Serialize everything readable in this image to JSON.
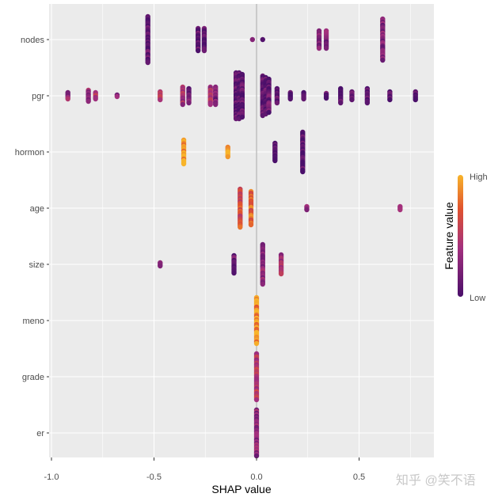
{
  "chart_data": {
    "type": "scatter",
    "xlabel": "SHAP value",
    "ylabel": "",
    "xlim": [
      -1.02,
      0.86
    ],
    "x_ticks": [
      -1.0,
      -0.5,
      0.0,
      0.5
    ],
    "x_tick_labels": [
      "-1.0",
      "-0.5",
      "0.0",
      "0.5"
    ],
    "grid": true,
    "features": [
      "nodes",
      "pgr",
      "hormon",
      "age",
      "size",
      "meno",
      "grade",
      "er"
    ],
    "legend": {
      "title": "Feature value",
      "high": "High",
      "low": "Low",
      "placement": "right"
    },
    "colors": {
      "low": "#4a0f6a",
      "mid1": "#a3307e",
      "mid2": "#e0522f",
      "high": "#f8b42a",
      "panel": "#ebebeb",
      "zero_line": "#a6a6a6"
    },
    "note": "clusters: shap value, approximate point count, mean feature value (0=Low,1=High)",
    "clusters": {
      "nodes": [
        [
          -0.53,
          30,
          0.1
        ],
        [
          -0.285,
          15,
          0.1
        ],
        [
          -0.255,
          15,
          0.1
        ],
        [
          -0.02,
          1,
          0.1
        ],
        [
          0.03,
          1,
          0.1
        ],
        [
          0.305,
          12,
          0.25
        ],
        [
          0.34,
          12,
          0.25
        ],
        [
          0.615,
          27,
          0.25
        ]
      ],
      "pgr": [
        [
          -0.92,
          5,
          0.35
        ],
        [
          -0.82,
          8,
          0.35
        ],
        [
          -0.785,
          5,
          0.5
        ],
        [
          -0.68,
          2,
          0.35
        ],
        [
          -0.47,
          6,
          0.6
        ],
        [
          -0.36,
          12,
          0.4
        ],
        [
          -0.33,
          10,
          0.2
        ],
        [
          -0.225,
          12,
          0.4
        ],
        [
          -0.2,
          12,
          0.2
        ],
        [
          -0.1,
          30,
          0.1
        ],
        [
          -0.085,
          30,
          0.1
        ],
        [
          -0.07,
          28,
          0.1
        ],
        [
          0.03,
          26,
          0.1
        ],
        [
          0.045,
          24,
          0.1
        ],
        [
          0.06,
          22,
          0.15
        ],
        [
          0.1,
          10,
          0.1
        ],
        [
          0.165,
          5,
          0.1
        ],
        [
          0.23,
          5,
          0.1
        ],
        [
          0.34,
          4,
          0.1
        ],
        [
          0.41,
          10,
          0.1
        ],
        [
          0.465,
          6,
          0.1
        ],
        [
          0.54,
          10,
          0.1
        ],
        [
          0.65,
          6,
          0.1
        ],
        [
          0.775,
          6,
          0.1
        ]
      ],
      "hormon": [
        [
          -0.355,
          16,
          0.95
        ],
        [
          -0.14,
          7,
          0.95
        ],
        [
          0.09,
          12,
          0.05
        ],
        [
          0.225,
          26,
          0.05
        ]
      ],
      "age": [
        [
          -0.08,
          25,
          0.65
        ],
        [
          -0.027,
          22,
          0.75
        ],
        [
          0.245,
          3,
          0.3
        ],
        [
          0.7,
          3,
          0.3
        ]
      ],
      "size": [
        [
          -0.47,
          3,
          0.2
        ],
        [
          -0.11,
          12,
          0.15
        ],
        [
          0.03,
          26,
          0.3
        ],
        [
          0.12,
          13,
          0.4
        ]
      ],
      "meno": [
        [
          0.0,
          30,
          0.9
        ]
      ],
      "grade": [
        [
          0.0,
          30,
          0.5
        ]
      ],
      "er": [
        [
          0.0,
          30,
          0.3
        ]
      ]
    }
  },
  "watermark": "知乎 @笑不语"
}
